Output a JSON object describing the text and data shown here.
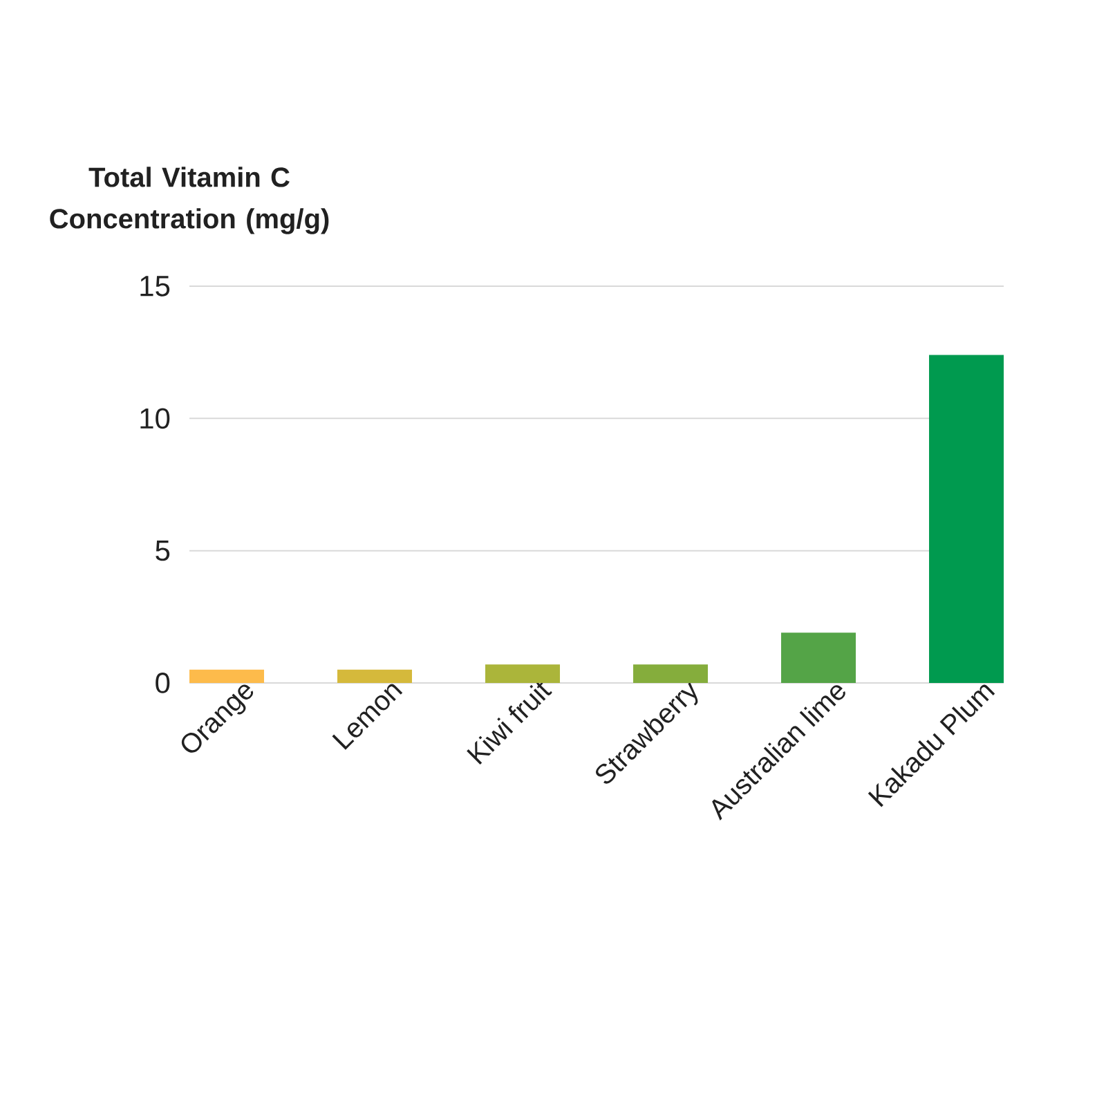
{
  "chart_data": {
    "type": "bar",
    "ylabel": "Total Vitamin C Concentration (mg/g)",
    "categories": [
      "Orange",
      "Lemon",
      "Kiwi fruit",
      "Strawberry",
      "Australian lime",
      "Kakadu Plum"
    ],
    "values": [
      0.5,
      0.5,
      0.7,
      0.7,
      1.9,
      12.4
    ],
    "colors": [
      "#fdbb4b",
      "#d5b93b",
      "#abb53a",
      "#85ad3c",
      "#54a447",
      "#009a4f"
    ],
    "ylim": [
      0,
      15
    ],
    "yticks": [
      0,
      5,
      10,
      15
    ],
    "grid": "y"
  }
}
